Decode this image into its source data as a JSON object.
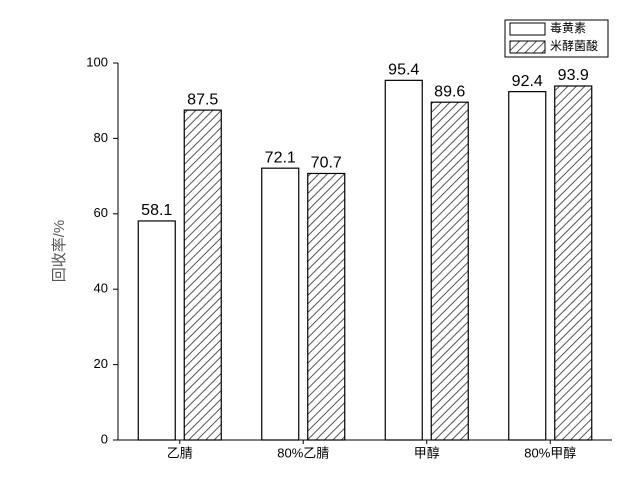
{
  "chart_data": {
    "type": "bar",
    "y_label": "回收率/%",
    "categories": [
      "乙腈",
      "80%乙腈",
      "甲醇",
      "80%甲醇"
    ],
    "series": [
      {
        "name": "毒黄素",
        "color": "#ffffff",
        "hatch": false,
        "values": [
          58.1,
          72.1,
          95.4,
          92.4
        ]
      },
      {
        "name": "米酵菌酸",
        "color": "#555555",
        "hatch": true,
        "values": [
          87.5,
          70.7,
          89.6,
          93.9
        ]
      }
    ],
    "ylim": [
      0,
      100
    ],
    "yticks": [
      0,
      20,
      40,
      60,
      80,
      100
    ],
    "grid": false,
    "legend": "top-right"
  }
}
